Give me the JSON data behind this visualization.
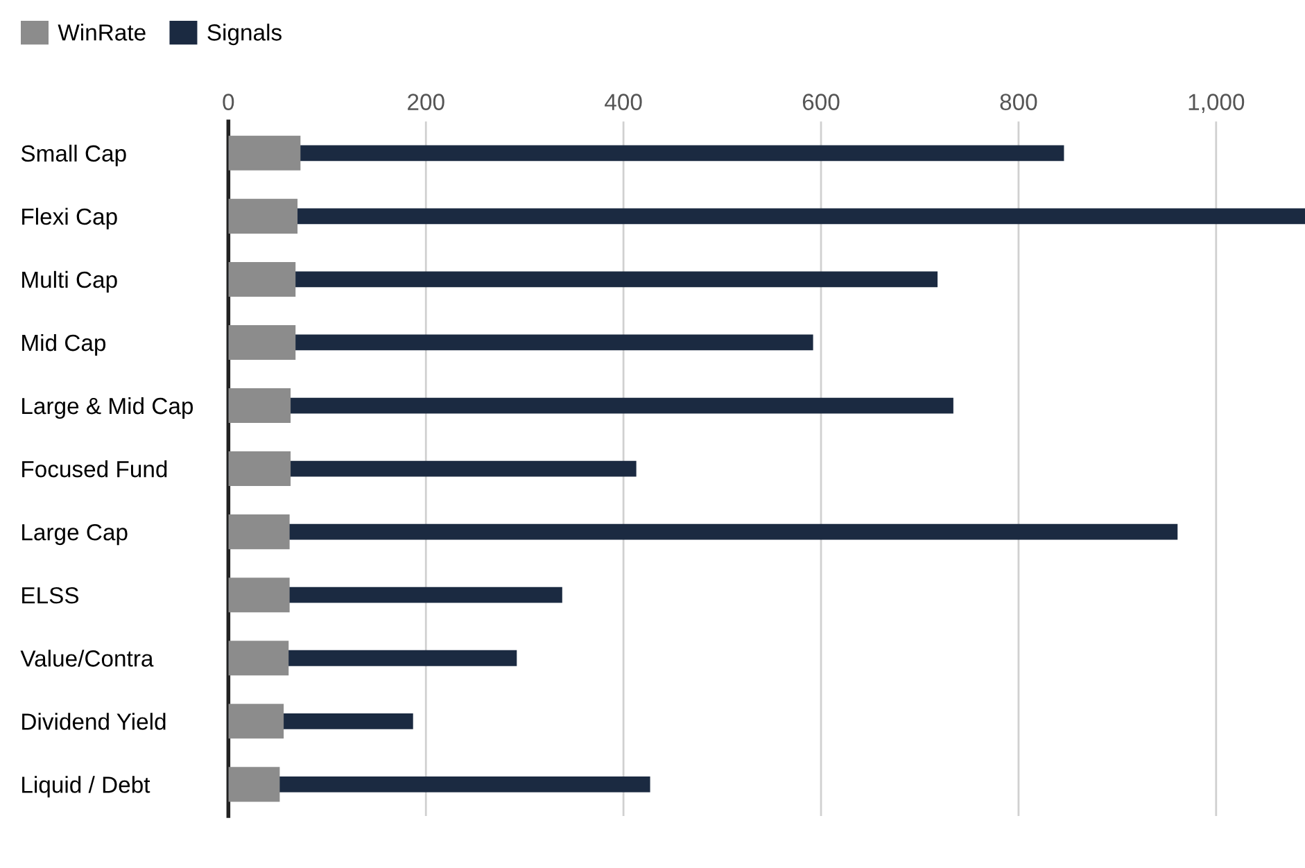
{
  "chart_data": {
    "type": "bar",
    "orientation": "horizontal",
    "categories": [
      "Small Cap",
      "Flexi Cap",
      "Multi Cap",
      "Mid Cap",
      "Large & Mid Cap",
      "Focused Fund",
      "Large Cap",
      "ELSS",
      "Value/Contra",
      "Dividend Yield",
      "Liquid / Debt"
    ],
    "series": [
      {
        "name": "WinRate",
        "color": "#8c8c8c",
        "values": [
          73,
          70,
          68,
          68,
          63,
          63,
          62,
          62,
          61,
          56,
          52
        ]
      },
      {
        "name": "Signals",
        "color": "#1b2a41",
        "values": [
          846,
          1090,
          718,
          592,
          734,
          413,
          961,
          338,
          292,
          187,
          427
        ]
      }
    ],
    "xlim": [
      0,
      1090
    ],
    "xticks": [
      0,
      200,
      400,
      600,
      800,
      {
        "value": 1000,
        "label": "1,000"
      }
    ],
    "grid": "x",
    "legend": "top left"
  }
}
